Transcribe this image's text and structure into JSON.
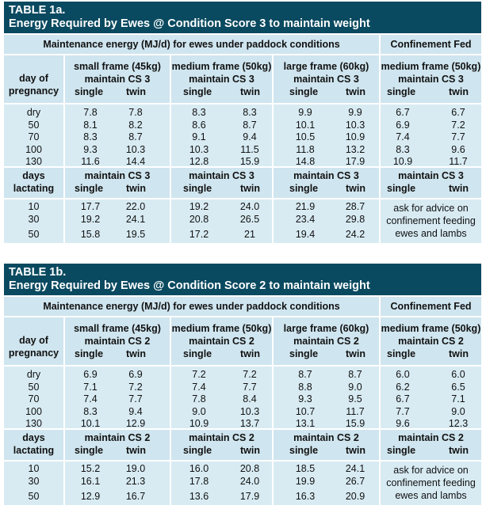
{
  "tables": [
    {
      "title_line1": "TABLE 1a.",
      "title_line2": "Energy Required by Ewes @ Condition Score 3 to maintain weight",
      "paddock_header": "Maintenance energy (MJ/d) for ewes under paddock conditions",
      "confinement_header": "Confinement Fed",
      "row_label_pregnancy": [
        "day of",
        "pregnancy"
      ],
      "row_label_lactating": [
        "days",
        "lactating"
      ],
      "groups": [
        {
          "frame": "small frame (45kg)",
          "maintain": "maintain CS 3"
        },
        {
          "frame": "medium frame (50kg)",
          "maintain": "maintain  CS 3"
        },
        {
          "frame": "large frame (60kg)",
          "maintain": "maintain CS 3"
        },
        {
          "frame": "medium frame (50kg)",
          "maintain": "maintain CS 3"
        }
      ],
      "lact_maintain": [
        "maintain CS 3",
        "maintain CS 3",
        "maintain  CS 3",
        "maintain  CS 3"
      ],
      "single_label": "single",
      "twin_label": "twin",
      "pregnancy_days": [
        "dry",
        "50",
        "70",
        "100",
        "130"
      ],
      "pregnancy_values": [
        [
          "7.8",
          "7.8",
          "8.3",
          "8.3",
          "9.9",
          "9.9",
          "6.7",
          "6.7"
        ],
        [
          "8.1",
          "8.2",
          "8.6",
          "8.7",
          "10.1",
          "10.3",
          "6.9",
          "7.2"
        ],
        [
          "8.3",
          "8.7",
          "9.1",
          "9.4",
          "10.5",
          "10.9",
          "7.4",
          "7.7"
        ],
        [
          "9.3",
          "10.3",
          "10.3",
          "11.5",
          "11.8",
          "13.2",
          "8.3",
          "9.6"
        ],
        [
          "11.6",
          "14.4",
          "12.8",
          "15.9",
          "14.8",
          "17.9",
          "10.9",
          "11.7"
        ]
      ],
      "lactating_days": [
        "10",
        "30",
        "50"
      ],
      "lactating_values": [
        [
          "17.7",
          "22.0",
          "19.2",
          "24.0",
          "21.9",
          "28.7"
        ],
        [
          "19.2",
          "24.1",
          "20.8",
          "26.5",
          "23.4",
          "29.8"
        ],
        [
          "15.8",
          "19.5",
          "17.2",
          "21",
          "19.4",
          "24.2"
        ]
      ],
      "advice": [
        "ask for advice on",
        "confinement feeding",
        "ewes and lambs"
      ]
    },
    {
      "title_line1": "TABLE 1b.",
      "title_line2": "Energy Required by Ewes @ Condition Score 2 to maintain weight",
      "paddock_header": "Maintenance energy (MJ/d) for ewes under paddock conditions",
      "confinement_header": "Confinement Fed",
      "row_label_pregnancy": [
        "day of",
        "pregnancy"
      ],
      "row_label_lactating": [
        "days",
        "lactating"
      ],
      "groups": [
        {
          "frame": "small frame (45kg)",
          "maintain": "maintain CS 2"
        },
        {
          "frame": "medium frame (50kg)",
          "maintain": "maintain CS 2"
        },
        {
          "frame": "large frame (60kg)",
          "maintain": "maintain CS 2"
        },
        {
          "frame": "medium frame (50kg)",
          "maintain": "maintain CS 2"
        }
      ],
      "lact_maintain": [
        "maintain CS 2",
        "maintain CS 2",
        "maintain CS 2",
        "maintain CS 2"
      ],
      "single_label": "single",
      "twin_label": "twin",
      "pregnancy_days": [
        "dry",
        "50",
        "70",
        "100",
        "130"
      ],
      "pregnancy_values": [
        [
          "6.9",
          "6.9",
          "7.2",
          "7.2",
          "8.7",
          "8.7",
          "6.0",
          "6.0"
        ],
        [
          "7.1",
          "7.2",
          "7.4",
          "7.7",
          "8.8",
          "9.0",
          "6.2",
          "6.5"
        ],
        [
          "7.4",
          "7.7",
          "7.8",
          "8.4",
          "9.3",
          "9.5",
          "6.7",
          "7.1"
        ],
        [
          "8.3",
          "9.4",
          "9.0",
          "10.3",
          "10.7",
          "11.7",
          "7.7",
          "9.0"
        ],
        [
          "10.1",
          "12.9",
          "10.9",
          "13.7",
          "13.1",
          "15.9",
          "9.6",
          "12.3"
        ]
      ],
      "lactating_days": [
        "10",
        "30",
        "50"
      ],
      "lactating_values": [
        [
          "15.2",
          "19.0",
          "16.0",
          "20.8",
          "18.5",
          "24.1"
        ],
        [
          "16.1",
          "21.3",
          "17.8",
          "24.0",
          "19.9",
          "26.7"
        ],
        [
          "12.9",
          "16.7",
          "13.6",
          "17.9",
          "16.3",
          "20.9"
        ]
      ],
      "advice": [
        "ask for advice on",
        "confinement feeding",
        "ewes and lambs"
      ]
    }
  ]
}
